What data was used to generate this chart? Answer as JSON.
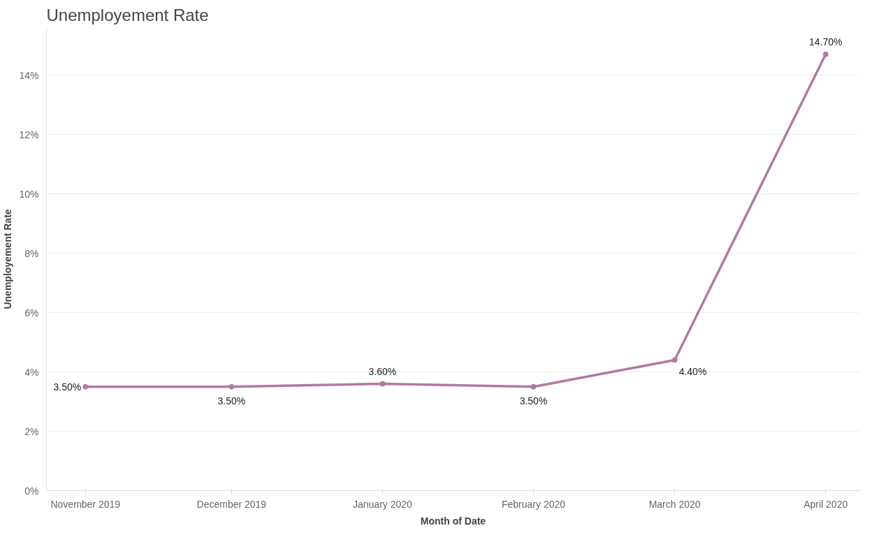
{
  "chart_data": {
    "type": "line",
    "title": "Unemployement Rate",
    "xlabel": "Month of Date",
    "ylabel": "Unemployement Rate",
    "x": [
      "2019-11",
      "2019-12",
      "2020-01",
      "2020-02",
      "2020-03",
      "2020-04"
    ],
    "series": [
      {
        "color": "#b07aa1",
        "values": [
          3.5,
          3.5,
          3.6,
          3.5,
          4.4,
          14.7
        ],
        "value_labels": [
          "3.50%",
          "3.50%",
          "3.60%",
          "3.50%",
          "4.40%",
          "14.70%"
        ]
      }
    ],
    "xlim": [
      "2019-10-24",
      "2020-04-08"
    ],
    "xticks": [
      {
        "value": "2019-11",
        "label": "November 2019"
      },
      {
        "value": "2019-12",
        "label": "December 2019"
      },
      {
        "value": "2020-01",
        "label": "January 2020"
      },
      {
        "value": "2020-02",
        "label": "February 2020"
      },
      {
        "value": "2020-03",
        "label": "March 2020"
      },
      {
        "value": "2020-04",
        "label": "April 2020"
      }
    ],
    "ylim": [
      0,
      15.6
    ],
    "yticks": [
      {
        "value": 0,
        "label": "0%"
      },
      {
        "value": 2,
        "label": "2%"
      },
      {
        "value": 4,
        "label": "4%"
      },
      {
        "value": 6,
        "label": "6%"
      },
      {
        "value": 8,
        "label": "8%"
      },
      {
        "value": 10,
        "label": "10%"
      },
      {
        "value": 12,
        "label": "12%"
      },
      {
        "value": 14,
        "label": "14%"
      }
    ],
    "grid": "y",
    "marker": "circle",
    "line_style": "solid"
  }
}
